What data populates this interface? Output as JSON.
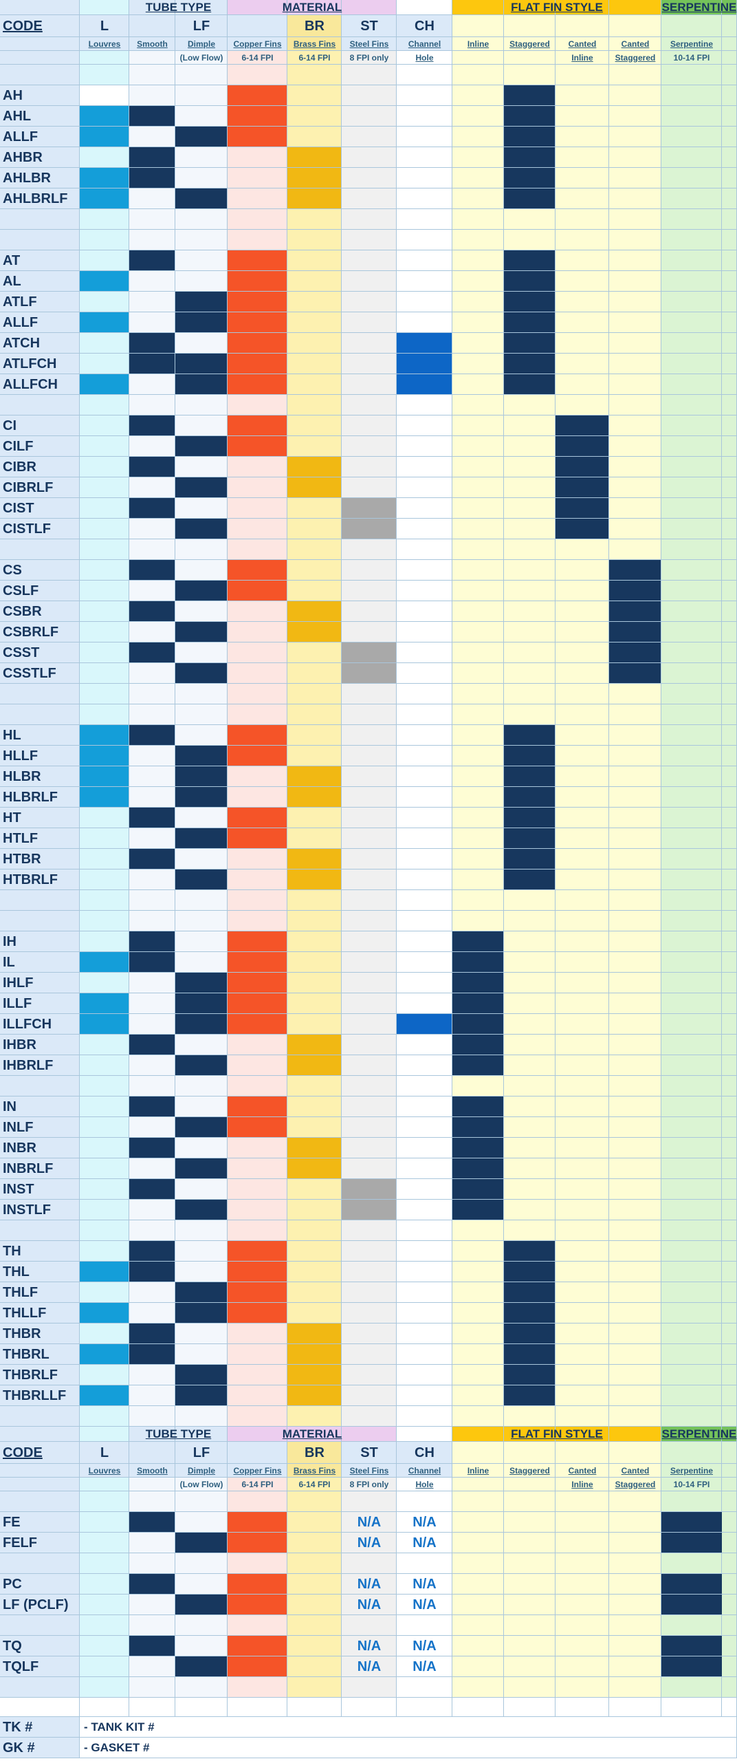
{
  "colors": {
    "light": [
      "#dbe9f8",
      "#d9f7fb",
      "#f3f7fc",
      "#f3f7fc",
      "#fde6e2",
      "#fdf1b0",
      "#f0f0f0",
      "#ffffff",
      "#fefdd4",
      "#fefdd4",
      "#fefdd4",
      "#fefdd4",
      "#dbf4d3",
      "#dbf4d3"
    ],
    "dark": {
      "n": "#17375e",
      "o": "#f55428",
      "g": "#f1b813",
      "s": "#a9a9a9",
      "b": "#0d66c6",
      "l": "#149ed9"
    },
    "header_bg": {
      "groups": [
        "#dbe9f8",
        "#d9f7fb",
        "#dbe9f8",
        "#dbe9f8",
        "#eccdef",
        "#eccdef",
        "#eccdef",
        "#ffffff",
        "#fdc70e",
        "#fdc70e",
        "#fdc70e",
        "#fdc70e",
        "#74c25a",
        "#74c25a"
      ],
      "abbr": [
        "#dbe9f8",
        "#dbe9f8",
        "#dbe9f8",
        "#dbe9f8",
        "#dbe9f8",
        "#f9e89b",
        "#dbe9f8",
        "#dbe9f8",
        "#fefdd4",
        "#fefdd4",
        "#fefdd4",
        "#fefdd4",
        "#dbf4d3",
        "#dbf4d3"
      ]
    }
  },
  "header": {
    "groups": [
      {
        "text": "TUBE TYPE",
        "c0": 2,
        "c1": 3
      },
      {
        "text": "MATERIAL",
        "c0": 4,
        "c1": 6
      },
      {
        "text": "FLAT FIN STYLE",
        "c0": 8,
        "c1": 11
      },
      {
        "text": "SERPENTINE",
        "c0": 12,
        "c1": 13
      }
    ],
    "code_label": "CODE",
    "abbr": [
      "",
      "L",
      "",
      "LF",
      "",
      "BR",
      "ST",
      "CH",
      "",
      "",
      "",
      "",
      "",
      ""
    ],
    "sub1": [
      "",
      "Louvres",
      "Smooth",
      "Dimple",
      "Copper Fins",
      "Brass Fins",
      "Steel Fins",
      "Channel",
      "Inline",
      "Staggered",
      "Canted",
      "Canted",
      "Serpentine",
      ""
    ],
    "sub2": [
      "",
      "",
      "",
      "(Low Flow)",
      "6-14 FPI",
      "6-14 FPI",
      "8 FPI only",
      "Hole",
      "",
      "",
      "Inline",
      "Staggered",
      "10-14 FPI",
      ""
    ]
  },
  "table1_rows": [
    [
      "",
      ""
    ],
    [
      "AH",
      "1.n.4o.9n"
    ],
    [
      "AHL",
      "1l.2n.4o.9n"
    ],
    [
      "ALLF",
      "1l.3n.4o.9n"
    ],
    [
      "AHBR",
      "2n.5g.9n"
    ],
    [
      "AHLBR",
      "1l.2n.5g.9n"
    ],
    [
      "AHLBRLF",
      "1l.3n.5g.9n"
    ],
    [
      "",
      ""
    ],
    [
      "",
      ""
    ],
    [
      "AT",
      "2n.4o.9n"
    ],
    [
      "AL",
      "1l.4o.9n"
    ],
    [
      "ATLF",
      "3n.4o.9n"
    ],
    [
      "ALLF",
      "1l.3n.4o.9n"
    ],
    [
      "ATCH",
      "2n.4o.7b.9n"
    ],
    [
      "ATLFCH",
      "2n.3n.4o.7b.9n"
    ],
    [
      "ALLFCH",
      "1l.3n.4o.7b.9n"
    ],
    [
      "",
      ""
    ],
    [
      "CI",
      "2n.4o.10n"
    ],
    [
      "CILF",
      "3n.4o.10n"
    ],
    [
      "CIBR",
      "2n.5g.10n"
    ],
    [
      "CIBRLF",
      "3n.5g.10n"
    ],
    [
      "CIST",
      "2n.6s.10n"
    ],
    [
      "CISTLF",
      "3n.6s.10n"
    ],
    [
      "",
      ""
    ],
    [
      "CS",
      "2n.4o.11n"
    ],
    [
      "CSLF",
      "3n.4o.11n"
    ],
    [
      "CSBR",
      "2n.5g.11n"
    ],
    [
      "CSBRLF",
      "3n.5g.11n"
    ],
    [
      "CSST",
      "2n.6s.11n"
    ],
    [
      "CSSTLF",
      "3n.6s.11n"
    ],
    [
      "",
      ""
    ],
    [
      "",
      ""
    ],
    [
      "HL",
      "1l.2n.4o.9n"
    ],
    [
      "HLLF",
      "1l.3n.4o.9n"
    ],
    [
      "HLBR",
      "1l.3n.5g.9n"
    ],
    [
      "HLBRLF",
      "1l.3n.5g.9n"
    ],
    [
      "HT",
      "2n.4o.9n"
    ],
    [
      "HTLF",
      "3n.4o.9n"
    ],
    [
      "HTBR",
      "2n.5g.9n"
    ],
    [
      "HTBRLF",
      "3n.5g.9n"
    ],
    [
      "",
      ""
    ],
    [
      "",
      ""
    ],
    [
      "IH",
      "2n.4o.8n"
    ],
    [
      "IL",
      "1l.2n.4o.8n"
    ],
    [
      "IHLF",
      "3n.4o.8n"
    ],
    [
      "ILLF",
      "1l.3n.4o.8n"
    ],
    [
      "ILLFCH",
      "1l.3n.4o.7b.8n"
    ],
    [
      "IHBR",
      "2n.5g.8n"
    ],
    [
      "IHBRLF",
      "3n.5g.8n"
    ],
    [
      "",
      ""
    ],
    [
      "IN",
      "2n.4o.8n"
    ],
    [
      "INLF",
      "3n.4o.8n"
    ],
    [
      "INBR",
      "2n.5g.8n"
    ],
    [
      "INBRLF",
      "3n.5g.8n"
    ],
    [
      "INST",
      "2n.6s.8n"
    ],
    [
      "INSTLF",
      "3n.6s.8n"
    ],
    [
      "",
      ""
    ],
    [
      "TH",
      "2n.4o.9n"
    ],
    [
      "THL",
      "1l.2n.4o.9n"
    ],
    [
      "THLF",
      "3n.4o.9n"
    ],
    [
      "THLLF",
      "1l.3n.4o.9n"
    ],
    [
      "THBR",
      "2n.5g.9n"
    ],
    [
      "THBRL",
      "1l.2n.5g.9n"
    ],
    [
      "THBRLF",
      "3n.5g.9n"
    ],
    [
      "THBRLLF",
      "1l.3n.5g.9n"
    ],
    [
      "",
      ""
    ]
  ],
  "na_text": "N/A",
  "table2_rows": [
    [
      "",
      ""
    ],
    [
      "FE",
      "2n.4o.12n"
    ],
    [
      "FELF",
      "3n.4o.12n"
    ],
    [
      "",
      ""
    ],
    [
      "PC",
      "2n.4o.12n"
    ],
    [
      "LF  (PCLF)",
      "3n.4o.12n"
    ],
    [
      "",
      ""
    ],
    [
      "TQ",
      "2n.4o.12n"
    ],
    [
      "TQLF",
      "3n.4o.12n"
    ],
    [
      "",
      ""
    ]
  ],
  "legend": [
    {
      "code": "TK #",
      "desc": "- TANK KIT #"
    },
    {
      "code": "GK #",
      "desc": "- GASKET #"
    }
  ]
}
